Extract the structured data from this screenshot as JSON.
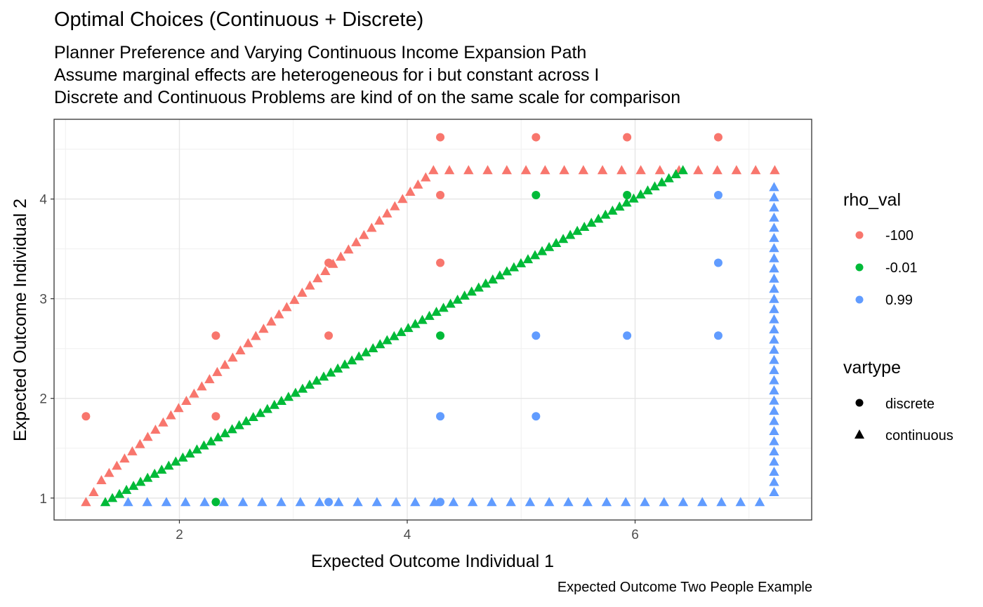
{
  "chart_data": {
    "type": "scatter",
    "title": "Optimal Choices (Continuous + Discrete)",
    "subtitle": [
      "Planner Preference and Varying Continuous Income Expansion Path",
      "Assume marginal effects are heterogeneous for i but constant across I",
      "Discrete and Continuous Problems are kind of on the same scale for comparison"
    ],
    "caption": "Expected Outcome Two People Example",
    "xlabel": "Expected Outcome Individual 1",
    "ylabel": "Expected Outcome Individual 2",
    "xlim": [
      0.9,
      7.55
    ],
    "ylim": [
      0.78,
      4.8
    ],
    "xticks": [
      2,
      4,
      6
    ],
    "yticks": [
      1,
      2,
      3,
      4
    ],
    "xtick_labels": [
      "2",
      "4",
      "6"
    ],
    "ytick_labels": [
      "1",
      "2",
      "3",
      "4"
    ],
    "grid": true,
    "legend_position": "right",
    "colors": {
      "-100": "#F8766D",
      "-0.01": "#00BA38",
      "0.99": "#619CFF"
    },
    "legend": {
      "color_title": "rho_val",
      "color_entries": [
        {
          "label": "-100",
          "color": "#F8766D"
        },
        {
          "label": "-0.01",
          "color": "#00BA38"
        },
        {
          "label": "0.99",
          "color": "#619CFF"
        }
      ],
      "shape_title": "vartype",
      "shape_entries": [
        {
          "label": "discrete",
          "shape": "circle"
        },
        {
          "label": "continuous",
          "shape": "triangle"
        }
      ]
    },
    "discrete": [
      {
        "rho": "-100",
        "points": [
          [
            1.18,
            1.82
          ],
          [
            2.32,
            2.63
          ],
          [
            2.32,
            1.82
          ],
          [
            3.31,
            3.36
          ],
          [
            3.31,
            2.63
          ],
          [
            4.29,
            4.62
          ],
          [
            4.29,
            4.04
          ],
          [
            4.29,
            3.36
          ],
          [
            5.13,
            4.62
          ],
          [
            5.93,
            4.62
          ],
          [
            6.73,
            4.62
          ]
        ]
      },
      {
        "rho": "-0.01",
        "points": [
          [
            2.32,
            0.96
          ],
          [
            4.29,
            2.63
          ],
          [
            5.13,
            4.04
          ],
          [
            5.93,
            4.04
          ]
        ]
      },
      {
        "rho": "0.99",
        "points": [
          [
            3.31,
            0.96
          ],
          [
            4.29,
            0.96
          ],
          [
            4.29,
            1.82
          ],
          [
            5.13,
            1.82
          ],
          [
            5.13,
            2.63
          ],
          [
            5.93,
            2.63
          ],
          [
            6.73,
            2.63
          ],
          [
            6.73,
            3.36
          ],
          [
            6.73,
            4.04
          ]
        ]
      }
    ],
    "continuous": [
      {
        "rho": "-100",
        "start": [
          1.18,
          0.96
        ],
        "end": [
          7.22,
          4.29
        ],
        "knee": [
          4.23,
          4.29
        ],
        "steps": 1
      },
      {
        "rho": "-0.01",
        "start": [
          1.35,
          0.96
        ],
        "end": [
          6.42,
          4.29
        ]
      },
      {
        "rho": "0.99",
        "start": [
          1.55,
          0.96
        ],
        "end": [
          7.22,
          4.2
        ]
      }
    ]
  }
}
